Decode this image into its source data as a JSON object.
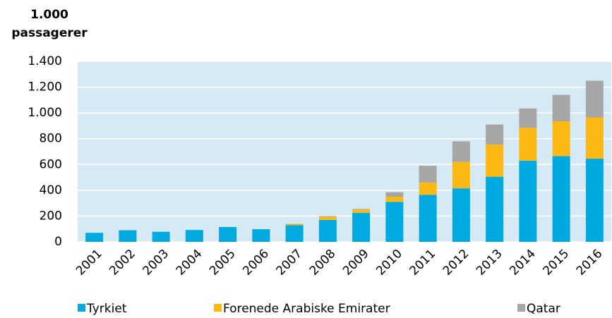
{
  "chart_data": {
    "type": "stacked_bar",
    "y_axis_label": "1.000 passagerer",
    "categories": [
      "2001",
      "2002",
      "2003",
      "2004",
      "2005",
      "2006",
      "2007",
      "2008",
      "2009",
      "2010",
      "2011",
      "2012",
      "2013",
      "2014",
      "2015",
      "2016"
    ],
    "series": [
      {
        "name": "Tyrkiet",
        "color": "#00a9e0",
        "values": [
          70,
          90,
          78,
          92,
          115,
          98,
          130,
          170,
          225,
          310,
          365,
          415,
          505,
          630,
          665,
          645
        ]
      },
      {
        "name": "Forenede Arabiske Emirater",
        "color": "#fdb913",
        "values": [
          0,
          0,
          0,
          0,
          0,
          0,
          10,
          25,
          25,
          40,
          95,
          205,
          250,
          255,
          270,
          320
        ]
      },
      {
        "name": "Qatar",
        "color": "#a6a6a6",
        "values": [
          0,
          0,
          0,
          0,
          0,
          0,
          0,
          5,
          5,
          35,
          130,
          160,
          155,
          150,
          205,
          285
        ]
      }
    ],
    "ylim": [
      0,
      1400
    ],
    "yticks": [
      0,
      200,
      400,
      600,
      800,
      {
        "value": 1000,
        "label": "1.000"
      },
      {
        "value": 1200,
        "label": "1.200"
      },
      {
        "value": 1400,
        "label": "1.400"
      }
    ],
    "grid": true,
    "legend": "bottom"
  }
}
